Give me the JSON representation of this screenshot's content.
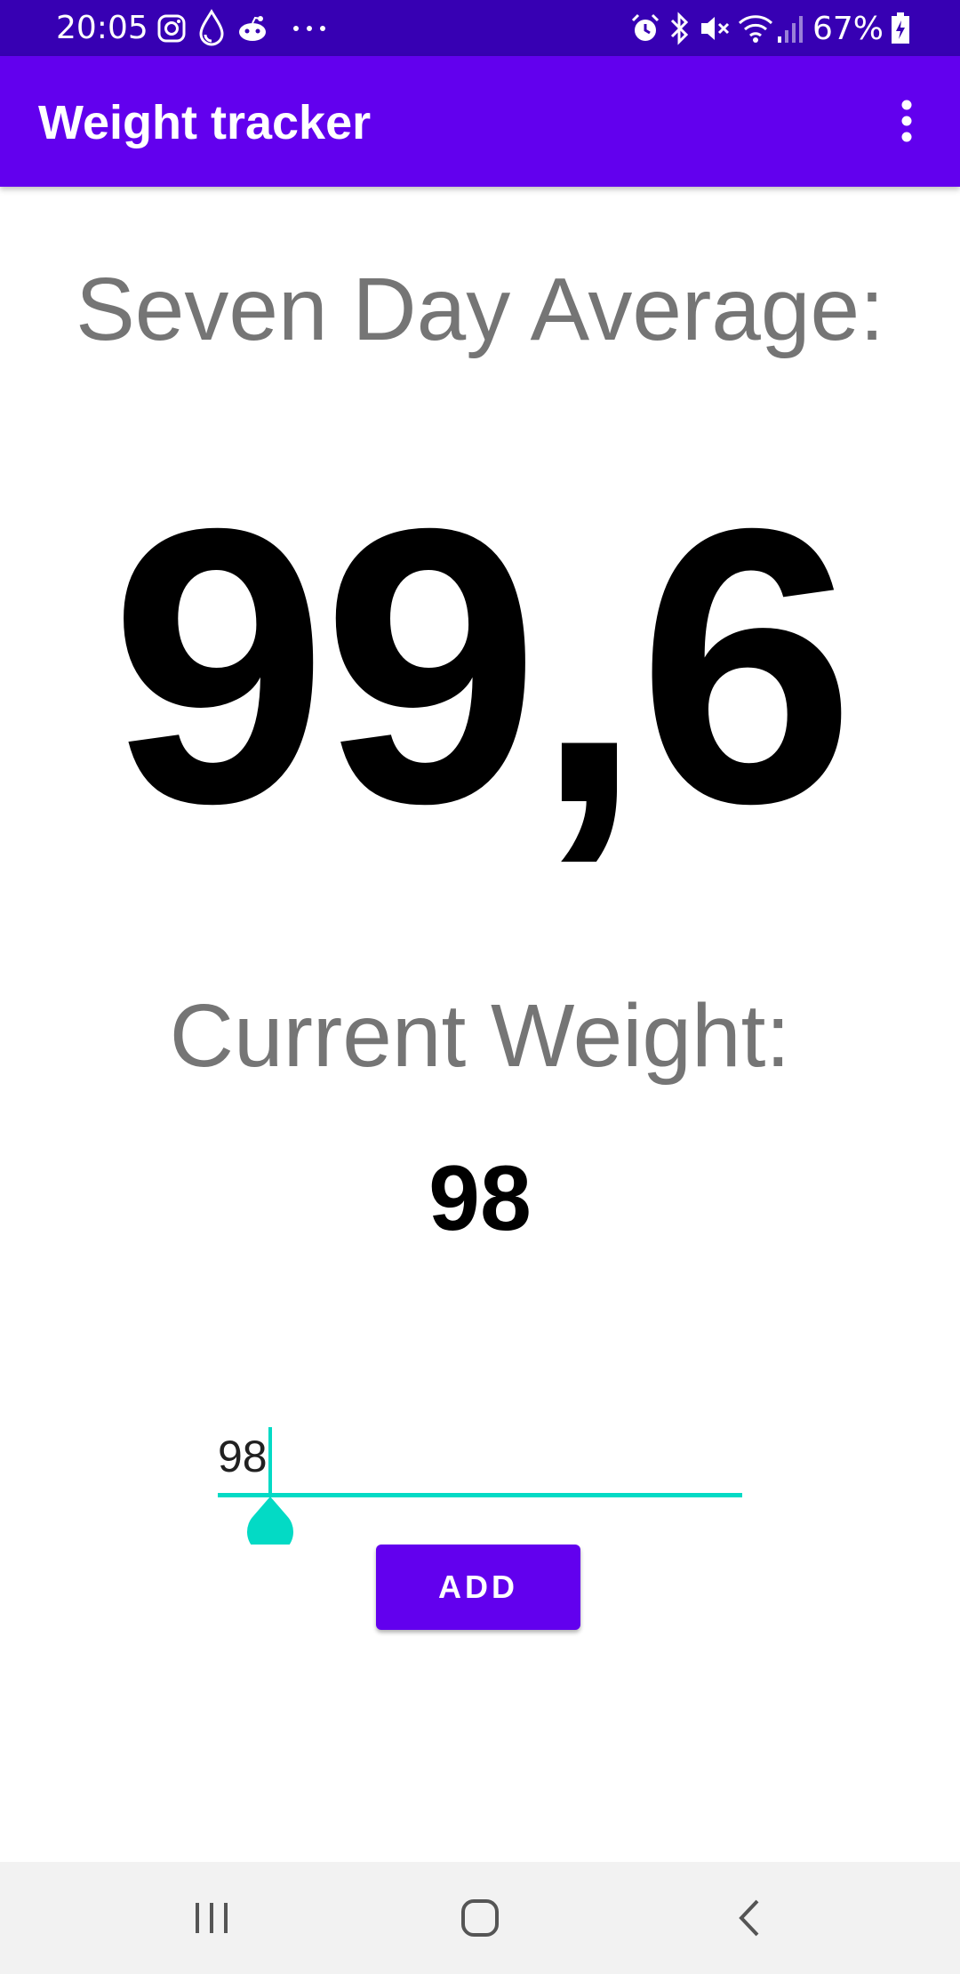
{
  "status_bar": {
    "time": "20:05",
    "battery_percent": "67%",
    "left_icons": [
      "instagram-icon",
      "water-drop-icon",
      "reddit-icon",
      "more-notifications-icon"
    ],
    "right_icons": [
      "alarm-icon",
      "bluetooth-icon",
      "mute-icon",
      "wifi-icon",
      "signal-icon",
      "battery-charging-icon"
    ]
  },
  "app_bar": {
    "title": "Weight tracker",
    "overflow_icon": "more-vert-icon"
  },
  "main": {
    "average_label": "Seven Day Average:",
    "average_value": "99,6",
    "current_label": "Current Weight:",
    "current_value": "98",
    "weight_input": {
      "value": "98",
      "placeholder": ""
    },
    "add_button_label": "ADD"
  },
  "nav_bar": {
    "icons": [
      "recent-apps-icon",
      "home-icon",
      "back-icon"
    ]
  },
  "colors": {
    "status_bar": "#3700b3",
    "primary": "#6200ee",
    "accent": "#03dac5",
    "label_gray": "#757575"
  }
}
